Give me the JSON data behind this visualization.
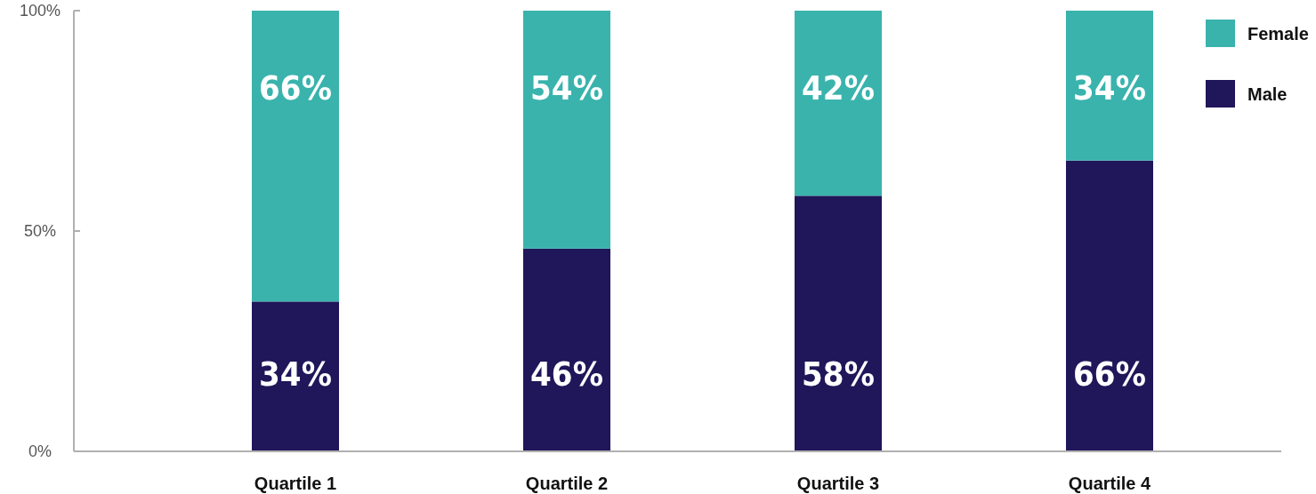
{
  "chart_data": {
    "type": "bar",
    "stacked": true,
    "categories": [
      "Quartile 1",
      "Quartile 2",
      "Quartile 3",
      "Quartile 4"
    ],
    "series": [
      {
        "name": "Male",
        "color": "#20165a",
        "values": [
          34,
          46,
          58,
          66
        ],
        "value_labels": [
          "34%",
          "46%",
          "58%",
          "66%"
        ]
      },
      {
        "name": "Female",
        "color": "#3ab3ad",
        "values": [
          66,
          54,
          42,
          34
        ],
        "value_labels": [
          "66%",
          "54%",
          "42%",
          "34%"
        ]
      }
    ],
    "ylim": [
      0,
      100
    ],
    "yticks": [
      {
        "value": 0,
        "label": "0%"
      },
      {
        "value": 50,
        "label": "50%"
      },
      {
        "value": 100,
        "label": "100%"
      }
    ],
    "legend": "top right",
    "grid": false
  }
}
